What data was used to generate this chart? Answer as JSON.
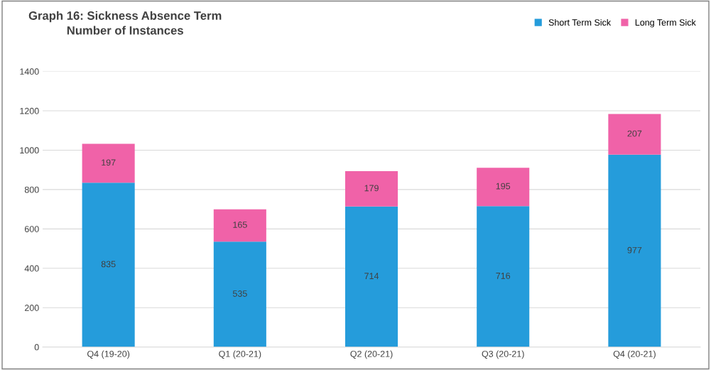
{
  "chart_data": {
    "type": "bar",
    "title": "Graph 16: Sickness Absence Term",
    "subtitle": "Number of Instances",
    "categories": [
      "Q4 (19-20)",
      "Q1 (20-21)",
      "Q2 (20-21)",
      "Q3 (20-21)",
      "Q4 (20-21)"
    ],
    "series": [
      {
        "name": "Short Term Sick",
        "color": "#259cdb",
        "values": [
          835,
          535,
          714,
          716,
          977
        ]
      },
      {
        "name": "Long Term Sick",
        "color": "#f062a8",
        "values": [
          197,
          165,
          179,
          195,
          207
        ]
      }
    ],
    "stacked": true,
    "data_labels": true,
    "ylim": [
      0,
      1400
    ],
    "yticks": [
      0,
      200,
      400,
      600,
      800,
      1000,
      1200,
      1400
    ],
    "grid": "y",
    "legend": "top right"
  }
}
